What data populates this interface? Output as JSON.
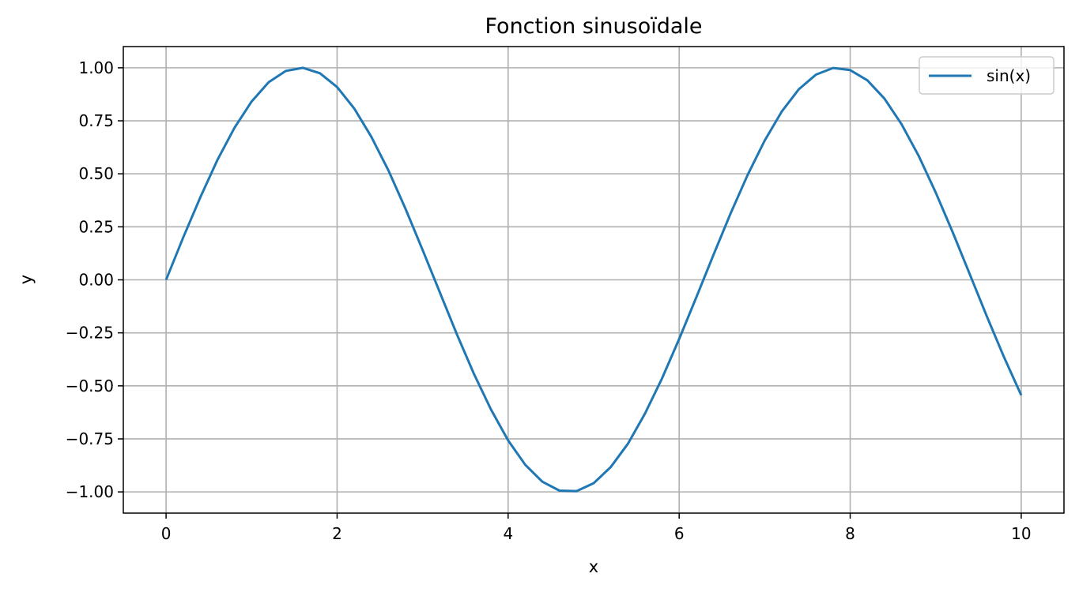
{
  "chart_data": {
    "type": "line",
    "title": "Fonction sinusoïdale",
    "xlabel": "x",
    "ylabel": "y",
    "xlim": [
      -0.5,
      10.5
    ],
    "ylim": [
      -1.1,
      1.1
    ],
    "grid": true,
    "legend_placement": "upper-right",
    "xticks": [
      0,
      2,
      4,
      6,
      8,
      10
    ],
    "xtick_labels": [
      "0",
      "2",
      "4",
      "6",
      "8",
      "10"
    ],
    "yticks": [
      -1,
      -0.75,
      -0.5,
      -0.25,
      0,
      0.25,
      0.5,
      0.75,
      1
    ],
    "ytick_labels": [
      "−1.00",
      "−0.75",
      "−0.50",
      "−0.25",
      "0.00",
      "0.25",
      "0.50",
      "0.75",
      "1.00"
    ],
    "series": [
      {
        "name": "sin(x)",
        "color": "#1f77b4",
        "x": [
          0,
          0.2,
          0.4,
          0.6,
          0.8,
          1.0,
          1.2,
          1.4,
          1.6,
          1.8,
          2.0,
          2.2,
          2.4,
          2.6,
          2.8,
          3.0,
          3.2,
          3.4,
          3.6,
          3.8,
          4.0,
          4.2,
          4.4,
          4.6,
          4.8,
          5.0,
          5.2,
          5.4,
          5.6,
          5.8,
          6.0,
          6.2,
          6.4,
          6.6,
          6.8,
          7.0,
          7.2,
          7.4,
          7.6,
          7.8,
          8.0,
          8.2,
          8.4,
          8.6,
          8.8,
          9.0,
          9.2,
          9.4,
          9.6,
          9.8,
          10.0
        ],
        "y": [
          0,
          0.199,
          0.389,
          0.565,
          0.717,
          0.841,
          0.932,
          0.985,
          1.0,
          0.974,
          0.909,
          0.808,
          0.675,
          0.516,
          0.335,
          0.141,
          -0.058,
          -0.256,
          -0.443,
          -0.612,
          -0.757,
          -0.872,
          -0.952,
          -0.994,
          -0.996,
          -0.959,
          -0.883,
          -0.773,
          -0.631,
          -0.465,
          -0.279,
          -0.083,
          0.117,
          0.312,
          0.494,
          0.657,
          0.794,
          0.899,
          0.968,
          0.999,
          0.989,
          0.941,
          0.855,
          0.734,
          0.585,
          0.412,
          0.223,
          0.025,
          -0.174,
          -0.366,
          -0.544
        ]
      }
    ]
  }
}
